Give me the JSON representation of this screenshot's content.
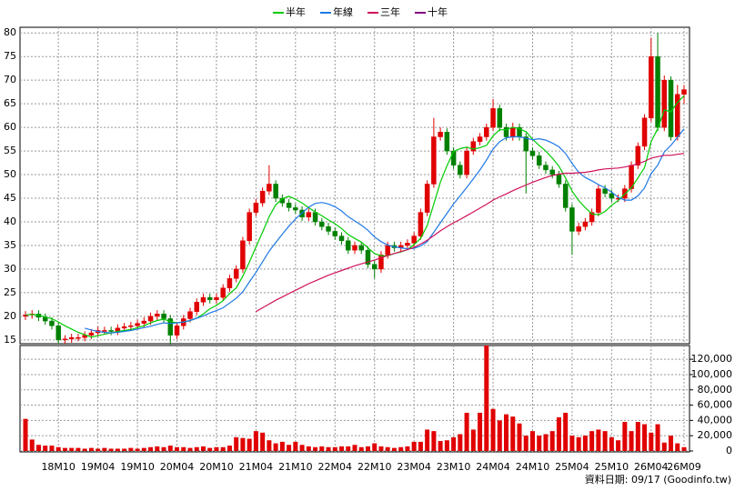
{
  "chart_data": {
    "type": "candlestick",
    "note": "資料日期: 09/17 (Goodinfo.tw)",
    "categories": [
      null,
      null,
      null,
      null,
      null,
      "18M10",
      null,
      null,
      null,
      null,
      null,
      "19M04",
      null,
      null,
      null,
      null,
      null,
      "19M10",
      null,
      null,
      null,
      null,
      null,
      "20M04",
      null,
      null,
      null,
      null,
      null,
      "20M10",
      null,
      null,
      null,
      null,
      null,
      "21M04",
      null,
      null,
      null,
      null,
      null,
      "21M10",
      null,
      null,
      null,
      null,
      null,
      "22M04",
      null,
      null,
      null,
      null,
      null,
      "22M10",
      null,
      null,
      null,
      null,
      null,
      "23M04",
      null,
      null,
      null,
      null,
      null,
      "23M10",
      null,
      null,
      null,
      null,
      null,
      "24M04",
      null,
      null,
      null,
      null,
      null,
      "24M10",
      null,
      null,
      null,
      null,
      null,
      "25M04",
      null,
      null,
      null,
      null,
      null,
      "25M10",
      null,
      null,
      null,
      null,
      null,
      "26M04",
      null,
      null,
      null,
      null,
      "26M09"
    ],
    "open": [
      20,
      20.3,
      20.5,
      19.8,
      19,
      18,
      15,
      15.2,
      15.5,
      15.5,
      16,
      16.5,
      17,
      17,
      16.8,
      17.5,
      17.8,
      18,
      18.5,
      19,
      20,
      20.5,
      19.5,
      16,
      18,
      19.5,
      21,
      23,
      24,
      23.5,
      24,
      26,
      28,
      30,
      36,
      42,
      44,
      46.5,
      48,
      45,
      44,
      43,
      42.5,
      41,
      42,
      40,
      39,
      38,
      37,
      36,
      34,
      35,
      34,
      31,
      30,
      33,
      35,
      34.5,
      35,
      35.5,
      37,
      42,
      48,
      58,
      59,
      55,
      52,
      50,
      55,
      57,
      58,
      60,
      64,
      60,
      58,
      60,
      58,
      55,
      54,
      52,
      51,
      50,
      48,
      43,
      38,
      39,
      40,
      42,
      47,
      46,
      45,
      45,
      47,
      52,
      56,
      62,
      75,
      60,
      70,
      58,
      67
    ],
    "high": [
      21.1,
      21.3,
      21.3,
      20.6,
      19.8,
      18.8,
      16,
      16.3,
      16.3,
      16.8,
      17.3,
      17.8,
      17.8,
      17.8,
      18.3,
      18.6,
      18.8,
      19.3,
      19.8,
      20.8,
      21.3,
      21.3,
      20.3,
      18.8,
      20.3,
      21.8,
      23.8,
      24.8,
      24.8,
      24.8,
      26.8,
      28.8,
      30.8,
      36.8,
      42.8,
      44.8,
      47.3,
      52,
      48.8,
      45.8,
      44.8,
      43.8,
      43.3,
      42.8,
      42.8,
      40.8,
      39.8,
      38.8,
      37.8,
      36.8,
      35.8,
      35.8,
      34.8,
      31.8,
      33.8,
      35.8,
      35.8,
      35.8,
      36.3,
      37.8,
      42.8,
      48.8,
      62,
      60,
      59.8,
      55.8,
      52.8,
      55.8,
      57.8,
      58.8,
      60.8,
      66,
      64.8,
      60.8,
      61,
      60.8,
      58.8,
      55.8,
      54.8,
      52.8,
      51.8,
      50.8,
      48.8,
      43.8,
      39.8,
      40.8,
      42.8,
      47.8,
      47.8,
      46.8,
      45.8,
      47.8,
      52.8,
      56.8,
      62.8,
      79,
      80,
      71,
      70.8,
      69,
      69
    ],
    "low": [
      19.2,
      19.5,
      19,
      18.2,
      17.2,
      14.2,
      14.2,
      14.4,
      14.7,
      14.7,
      15.2,
      15.7,
      16.2,
      16,
      16,
      16.7,
      17,
      17.2,
      17.7,
      18.2,
      19.2,
      18.7,
      14,
      15.2,
      17.2,
      18.7,
      20.2,
      22.2,
      22.7,
      22.7,
      23.2,
      25.2,
      27.2,
      29.2,
      35.2,
      41.2,
      43.2,
      45.7,
      44.2,
      43.2,
      42.2,
      41.7,
      40.2,
      40.2,
      39.2,
      38.2,
      37.2,
      36.2,
      35.2,
      33.2,
      33.2,
      33.2,
      30.2,
      28,
      29.2,
      32.2,
      33.7,
      33.7,
      34.2,
      34.7,
      36.2,
      41.2,
      47.2,
      57.2,
      54.2,
      51.2,
      49.2,
      49.2,
      54.2,
      56.2,
      57.2,
      59.2,
      59.2,
      57.2,
      57.2,
      57.2,
      46,
      53.2,
      51.2,
      50.2,
      49.2,
      47.2,
      42.2,
      33,
      37.2,
      38.2,
      39.2,
      41.2,
      45.2,
      44.2,
      44.2,
      44.2,
      46.2,
      51.2,
      55.2,
      61.2,
      59.2,
      59.2,
      57.2,
      57.2,
      65
    ],
    "close": [
      20.3,
      20.5,
      19.8,
      19,
      18,
      15,
      15.2,
      15.5,
      15.5,
      16,
      16.5,
      17,
      17,
      16.8,
      17.5,
      17.8,
      18,
      18.5,
      19,
      20,
      20.5,
      19.5,
      16,
      18,
      19.5,
      21,
      23,
      24,
      23.5,
      24,
      26,
      28,
      30,
      36,
      42,
      44,
      46.5,
      48,
      45,
      44,
      43,
      42.5,
      41,
      42,
      40,
      39,
      38,
      37,
      36,
      34,
      35,
      34,
      31,
      30,
      33,
      35,
      34.5,
      35,
      35.5,
      37,
      42,
      48,
      58,
      59,
      55,
      52,
      50,
      55,
      57,
      58,
      60,
      64,
      60,
      58,
      60,
      58,
      55,
      54,
      52,
      51,
      50,
      48,
      43,
      38,
      39,
      40,
      42,
      47,
      46,
      45,
      45,
      47,
      52,
      56,
      62,
      75,
      60,
      70,
      58,
      67,
      68
    ],
    "up_color": "#e00000",
    "down_color": "#008000",
    "series": [
      {
        "name": "半年",
        "color": "#00cc00",
        "values": [
          20.3,
          20.4,
          20.2,
          19.9,
          19.5,
          18.8,
          18,
          17.3,
          16.6,
          16.1,
          15.6,
          15.9,
          16.2,
          16.5,
          16.8,
          17,
          17.2,
          17.6,
          18,
          18.6,
          19.1,
          19.4,
          18.9,
          18.6,
          18.8,
          19.1,
          19.6,
          20.5,
          21.6,
          22.3,
          23.3,
          24.8,
          26,
          28.5,
          31.5,
          34.7,
          37.8,
          41.1,
          43.6,
          44.9,
          45.4,
          44.8,
          44,
          43,
          42.1,
          41.3,
          40.4,
          39.6,
          38.6,
          37.3,
          36.5,
          35.7,
          34.5,
          33.3,
          32.8,
          32.8,
          33.3,
          33.6,
          34.1,
          35.2,
          36.5,
          39.2,
          43.8,
          48.4,
          51.9,
          54.9,
          55.5,
          55.8,
          55.4,
          55.7,
          56.2,
          58.2,
          59.5,
          59.5,
          60,
          59.7,
          59.1,
          57.5,
          56.2,
          55,
          53.5,
          51.8,
          49.3,
          46.5,
          44.5,
          43,
          41.7,
          41.5,
          42.2,
          43.5,
          44.5,
          45.9,
          47.2,
          49.3,
          51.5,
          57,
          59.7,
          63.7,
          63.3,
          65.3,
          66.7
        ]
      },
      {
        "name": "年線",
        "color": "#1e78e6",
        "values": [
          null,
          null,
          null,
          null,
          null,
          null,
          null,
          null,
          null,
          17.5,
          17.1,
          16.8,
          16.6,
          16.5,
          16.6,
          16.8,
          17,
          17.3,
          17.6,
          17.9,
          18.3,
          18.6,
          18.5,
          18.6,
          18.8,
          19.1,
          19.6,
          20.1,
          20.7,
          21.2,
          21.8,
          22.8,
          23.8,
          25.2,
          27.3,
          29.3,
          31.5,
          33.8,
          35.6,
          37.4,
          39.1,
          40.6,
          41.9,
          43.1,
          43.9,
          44.1,
          43.8,
          43.2,
          42.3,
          41.1,
          40.2,
          39.3,
          38.2,
          36.8,
          35.8,
          35.1,
          34.7,
          34.5,
          34.3,
          34.4,
          34.9,
          35.8,
          37.8,
          39.8,
          41.8,
          43.8,
          45.5,
          47.3,
          49.1,
          51,
          53.1,
          55.4,
          57,
          57.8,
          58,
          58,
          57.7,
          57.4,
          57.6,
          57.3,
          56.7,
          55.9,
          54.5,
          52.4,
          50.5,
          49.4,
          48.7,
          47.9,
          47.2,
          46.3,
          45.2,
          44.6,
          44.6,
          45.5,
          47.2,
          50.2,
          52,
          54.8,
          56.2,
          57.9,
          59.7
        ]
      },
      {
        "name": "三年",
        "color": "#d0105a",
        "values": [
          null,
          null,
          null,
          null,
          null,
          null,
          null,
          null,
          null,
          null,
          null,
          null,
          null,
          null,
          null,
          null,
          null,
          null,
          null,
          null,
          null,
          null,
          null,
          null,
          null,
          null,
          null,
          null,
          null,
          null,
          null,
          null,
          null,
          null,
          null,
          21,
          21.8,
          22.6,
          23.4,
          24.1,
          24.8,
          25.5,
          26.2,
          26.9,
          27.5,
          28.1,
          28.7,
          29.2,
          29.7,
          30.2,
          30.7,
          31.1,
          31.5,
          31.9,
          32.4,
          32.9,
          33.3,
          33.7,
          34.1,
          34.6,
          35.3,
          36.1,
          37.1,
          38.1,
          39,
          39.8,
          40.5,
          41.3,
          42.1,
          42.9,
          43.7,
          44.6,
          45.3,
          45.9,
          46.6,
          47.2,
          47.8,
          48.4,
          48.9,
          49.4,
          49.8,
          50.1,
          50.3,
          50.3,
          50.4,
          50.5,
          50.7,
          51,
          51.2,
          51.3,
          51.4,
          51.6,
          51.9,
          52.3,
          52.8,
          53.5,
          53.8,
          54.1,
          54.1,
          54.3,
          54.5
        ]
      },
      {
        "name": "十年",
        "color": "#800080"
      }
    ],
    "ylim": [
      14.2,
      81.2
    ],
    "yticks": [
      15,
      20,
      25,
      30,
      35,
      40,
      45,
      50,
      55,
      60,
      65,
      70,
      75,
      80
    ],
    "volume": {
      "color": "#e00000",
      "values": [
        42000,
        15000,
        8000,
        7000,
        7000,
        5000,
        4000,
        4000,
        4000,
        3000,
        4000,
        3000,
        4000,
        3000,
        3000,
        3000,
        4000,
        3000,
        4000,
        5000,
        6000,
        5000,
        7000,
        5000,
        5000,
        4000,
        5000,
        6000,
        4000,
        5000,
        5000,
        7000,
        18000,
        17000,
        16000,
        26000,
        24000,
        14000,
        10000,
        12000,
        8000,
        12000,
        8000,
        6000,
        5000,
        6000,
        5000,
        5000,
        6000,
        6000,
        8000,
        5000,
        6000,
        10000,
        6000,
        5000,
        4000,
        5000,
        6000,
        12000,
        12000,
        28000,
        26000,
        13000,
        14000,
        18000,
        22000,
        50000,
        28000,
        50000,
        138000,
        55000,
        40000,
        48000,
        45000,
        36000,
        20000,
        26000,
        20000,
        22000,
        26000,
        44000,
        50000,
        20000,
        18000,
        20000,
        26000,
        28000,
        26000,
        18000,
        14000,
        38000,
        26000,
        38000,
        35000,
        24000,
        35000,
        11000,
        20000,
        10000,
        5000
      ]
    },
    "y2lim": [
      -1200,
      138000
    ],
    "y2ticks": [
      0,
      {
        "value": 20000,
        "label": "20,000"
      },
      {
        "value": 40000,
        "label": "40,000"
      },
      {
        "value": 60000,
        "label": "60,000"
      },
      {
        "value": 80000,
        "label": "80,000"
      },
      {
        "value": 100000,
        "label": "100,000"
      },
      {
        "value": 120000,
        "label": "120,000"
      }
    ],
    "grid": true
  }
}
